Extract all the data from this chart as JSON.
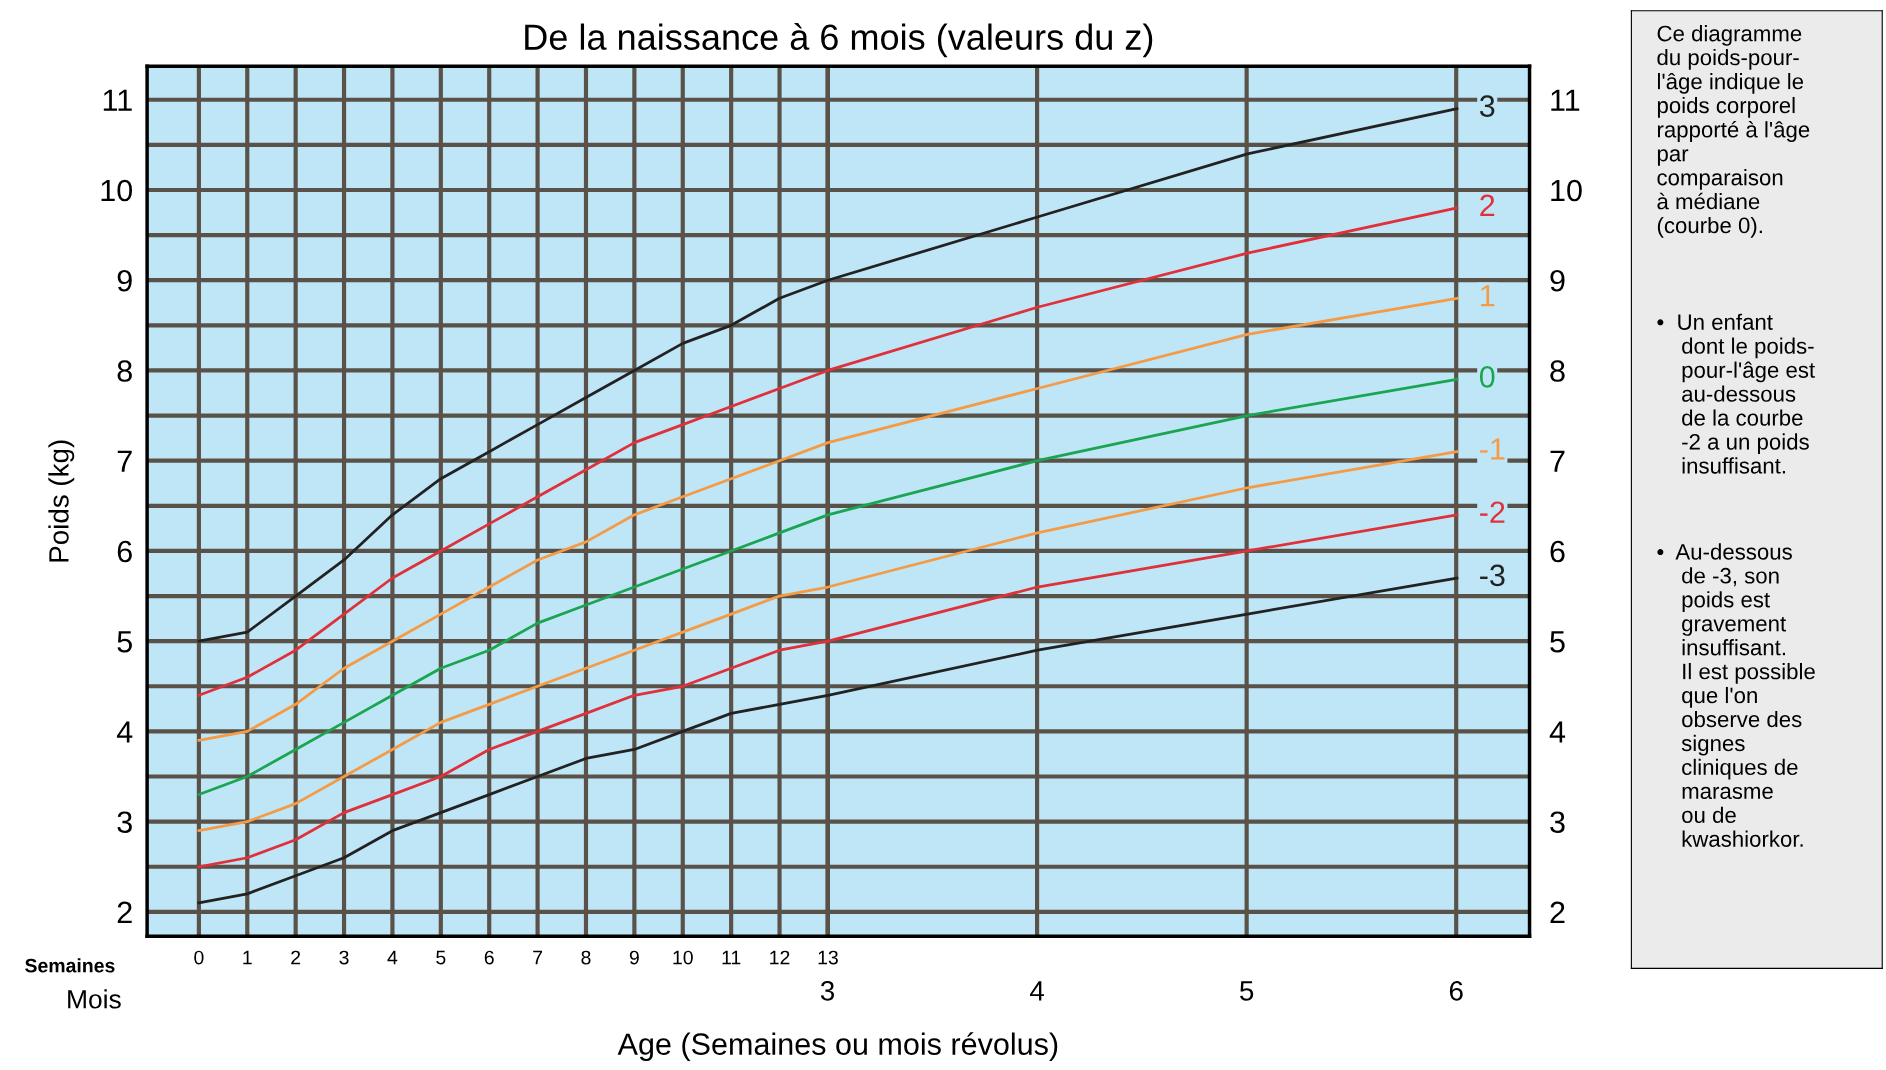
{
  "chart_data": {
    "type": "line",
    "title": "De la naissance à 6 mois (valeurs du z)",
    "xlabel": "Age (Semaines ou mois révolus)",
    "ylabel": "Poids (kg)",
    "x": [
      0,
      1,
      2,
      3,
      4,
      5,
      6,
      7,
      8,
      9,
      10,
      11,
      12,
      13,
      17.33,
      21.67,
      26
    ],
    "series": [
      {
        "name": "3",
        "color": "#222222",
        "values": [
          5.0,
          5.1,
          5.5,
          5.9,
          6.4,
          6.8,
          7.1,
          7.4,
          7.7,
          8.0,
          8.3,
          8.5,
          8.8,
          9.0,
          9.7,
          10.4,
          10.9
        ]
      },
      {
        "name": "2",
        "color": "#e0303a",
        "values": [
          4.4,
          4.6,
          4.9,
          5.3,
          5.7,
          6.0,
          6.3,
          6.6,
          6.9,
          7.2,
          7.4,
          7.6,
          7.8,
          8.0,
          8.7,
          9.3,
          9.8
        ]
      },
      {
        "name": "1",
        "color": "#f59a45",
        "values": [
          3.9,
          4.0,
          4.3,
          4.7,
          5.0,
          5.3,
          5.6,
          5.9,
          6.1,
          6.4,
          6.6,
          6.8,
          7.0,
          7.2,
          7.8,
          8.4,
          8.8
        ]
      },
      {
        "name": "0",
        "color": "#1aa550",
        "values": [
          3.3,
          3.5,
          3.8,
          4.1,
          4.4,
          4.7,
          4.9,
          5.2,
          5.4,
          5.6,
          5.8,
          6.0,
          6.2,
          6.4,
          7.0,
          7.5,
          7.9
        ]
      },
      {
        "name": "-1",
        "color": "#f59a45",
        "values": [
          2.9,
          3.0,
          3.2,
          3.5,
          3.8,
          4.1,
          4.3,
          4.5,
          4.7,
          4.9,
          5.1,
          5.3,
          5.5,
          5.6,
          6.2,
          6.7,
          7.1
        ]
      },
      {
        "name": "-2",
        "color": "#e0303a",
        "values": [
          2.5,
          2.6,
          2.8,
          3.1,
          3.3,
          3.5,
          3.8,
          4.0,
          4.2,
          4.4,
          4.5,
          4.7,
          4.9,
          5.0,
          5.6,
          6.0,
          6.4
        ]
      },
      {
        "name": "-3",
        "color": "#222222",
        "values": [
          2.1,
          2.2,
          2.4,
          2.6,
          2.9,
          3.1,
          3.3,
          3.5,
          3.7,
          3.8,
          4.0,
          4.2,
          4.3,
          4.4,
          4.9,
          5.3,
          5.7
        ]
      }
    ],
    "xlim": [
      -1.07,
      27.5
    ],
    "xticks": [
      0,
      1,
      2,
      3,
      4,
      5,
      6,
      7,
      8,
      9,
      10,
      11,
      12,
      13
    ],
    "x2lim": [
      -0.247,
      6.35
    ],
    "x2ticks": [
      3,
      4,
      5,
      6
    ],
    "ylim": [
      1.73,
      11.37
    ],
    "yticks": [
      2,
      {
        "value": 2.5,
        "label": null
      },
      3,
      {
        "value": 3.5,
        "label": null
      },
      4,
      {
        "value": 4.5,
        "label": null
      },
      5,
      {
        "value": 5.5,
        "label": null
      },
      6,
      {
        "value": 6.5,
        "label": null
      },
      7,
      {
        "value": 7.5,
        "label": null
      },
      8,
      {
        "value": 8.5,
        "label": null
      },
      9,
      {
        "value": 9.5,
        "label": null
      },
      10,
      {
        "value": 10.5,
        "label": null
      },
      11
    ],
    "y2lim": [
      1.73,
      11.37
    ],
    "y2ticks": [
      2,
      3,
      4,
      5,
      6,
      7,
      8,
      9,
      10,
      11
    ],
    "grid": true,
    "legend": false,
    "marker": "none",
    "line_style": "solid",
    "annotations": [
      "Semaines",
      "Mois",
      "Ce diagramme\ndu poids-pour-\nl'âge indique le\npoids corporel\nrapporté à l'âge\npar\ncomparaison\nà médiane\n(courbe 0).",
      "•  Un enfant\n    dont le poids-\n    pour-l'âge est\n    au-dessous\n    de la courbe\n    -2 a un poids\n    insuffisant.",
      "•  Au-dessous\n    de -3, son\n    poids est\n    gravement\n    insuffisant.\n    Il est possible\n    que l'on\n    observe des\n    signes\n    cliniques de\n    marasme\n    ou de\n    kwashiorkor."
    ]
  }
}
